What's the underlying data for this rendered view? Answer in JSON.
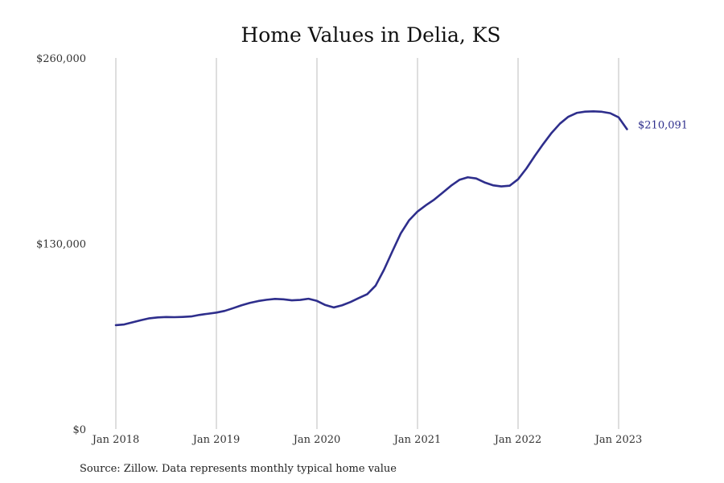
{
  "chart_data": {
    "type": "line",
    "title": "Home Values in Delia, KS",
    "xlabel": "",
    "ylabel": "",
    "ylim": [
      0,
      260000
    ],
    "y_ticks": [
      "$0",
      "$130,000",
      "$260,000"
    ],
    "y_tick_values": [
      0,
      130000,
      260000
    ],
    "x_ticks": [
      "Jan 2018",
      "Jan 2019",
      "Jan 2020",
      "Jan 2021",
      "Jan 2022",
      "Jan 2023"
    ],
    "x_tick_values": [
      "2018-01",
      "2019-01",
      "2020-01",
      "2021-01",
      "2022-01",
      "2023-01"
    ],
    "grid": "vertical",
    "series": [
      {
        "color": "#2e2e8c",
        "x": [
          "2018-01",
          "2018-02",
          "2018-03",
          "2018-04",
          "2018-05",
          "2018-06",
          "2018-07",
          "2018-08",
          "2018-09",
          "2018-10",
          "2018-11",
          "2018-12",
          "2019-01",
          "2019-02",
          "2019-03",
          "2019-04",
          "2019-05",
          "2019-06",
          "2019-07",
          "2019-08",
          "2019-09",
          "2019-10",
          "2019-11",
          "2019-12",
          "2020-01",
          "2020-02",
          "2020-03",
          "2020-04",
          "2020-05",
          "2020-06",
          "2020-07",
          "2020-08",
          "2020-09",
          "2020-10",
          "2020-11",
          "2020-12",
          "2021-01",
          "2021-02",
          "2021-03",
          "2021-04",
          "2021-05",
          "2021-06",
          "2021-07",
          "2021-08",
          "2021-09",
          "2021-10",
          "2021-11",
          "2021-12",
          "2022-01",
          "2022-02",
          "2022-03",
          "2022-04",
          "2022-05",
          "2022-06",
          "2022-07",
          "2022-08",
          "2022-09",
          "2022-10",
          "2022-11",
          "2022-12",
          "2023-01",
          "2023-02"
        ],
        "values": [
          72800,
          73300,
          74800,
          76300,
          77600,
          78200,
          78500,
          78400,
          78600,
          78900,
          80000,
          80800,
          81600,
          82800,
          84700,
          86700,
          88400,
          89700,
          90600,
          91200,
          90900,
          90200,
          90500,
          91300,
          89800,
          86900,
          85200,
          86700,
          89000,
          91800,
          94500,
          100500,
          111600,
          124500,
          137100,
          146300,
          152400,
          156800,
          160800,
          165600,
          170500,
          174600,
          176400,
          175600,
          172800,
          170800,
          170000,
          170500,
          175000,
          182600,
          191400,
          199700,
          207500,
          214000,
          218800,
          221500,
          222400,
          222600,
          222300,
          221300,
          218400,
          210091
        ],
        "end_label": "$210,091"
      }
    ],
    "source": "Source: Zillow. Data represents monthly typical home value"
  }
}
